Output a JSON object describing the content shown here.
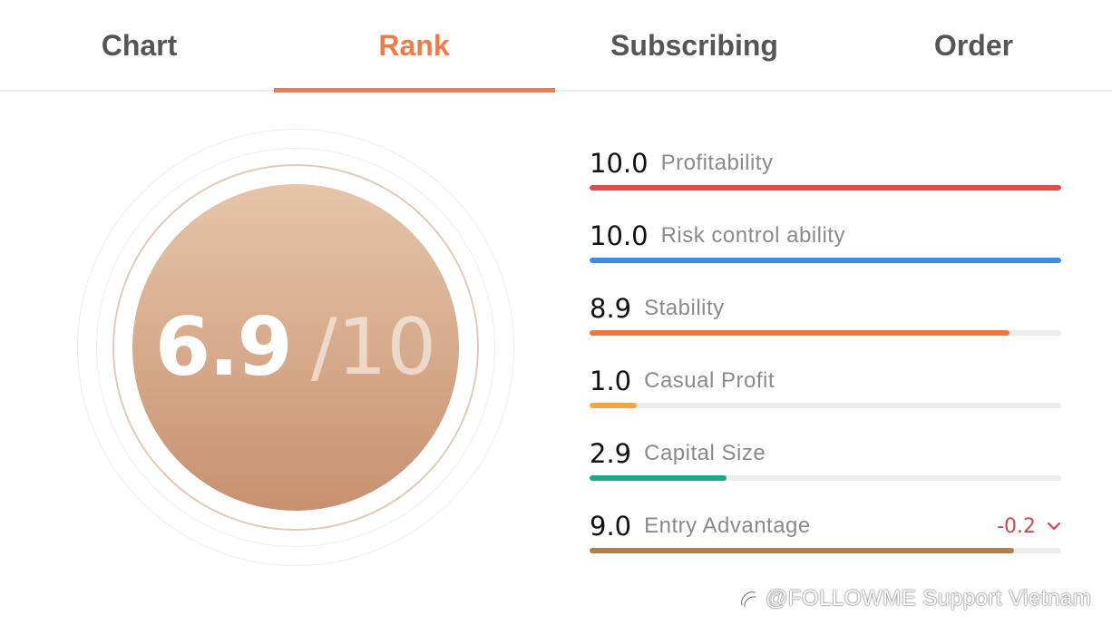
{
  "tabs": [
    {
      "label": "Chart",
      "active": false
    },
    {
      "label": "Rank",
      "active": true
    },
    {
      "label": "Subscribing",
      "active": false
    },
    {
      "label": "Order",
      "active": false
    }
  ],
  "overall": {
    "score": "6.9",
    "max": "/10"
  },
  "metrics": [
    {
      "score": "10.0",
      "label": "Profitability",
      "fill": 1.0,
      "color": "#df4a4a"
    },
    {
      "score": "10.0",
      "label": "Risk control ability",
      "fill": 1.0,
      "color": "#3f8ce6"
    },
    {
      "score": "8.9",
      "label": "Stability",
      "fill": 0.89,
      "color": "#f07544"
    },
    {
      "score": "1.0",
      "label": "Casual Profit",
      "fill": 0.1,
      "color": "#eca748"
    },
    {
      "score": "2.9",
      "label": "Capital Size",
      "fill": 0.29,
      "color": "#17ab8c"
    },
    {
      "score": "9.0",
      "label": "Entry Advantage",
      "fill": 0.9,
      "color": "#b07e4a",
      "change": "-0.2"
    }
  ],
  "watermark": {
    "text": "@FOLLOWME Support Vietnam"
  }
}
